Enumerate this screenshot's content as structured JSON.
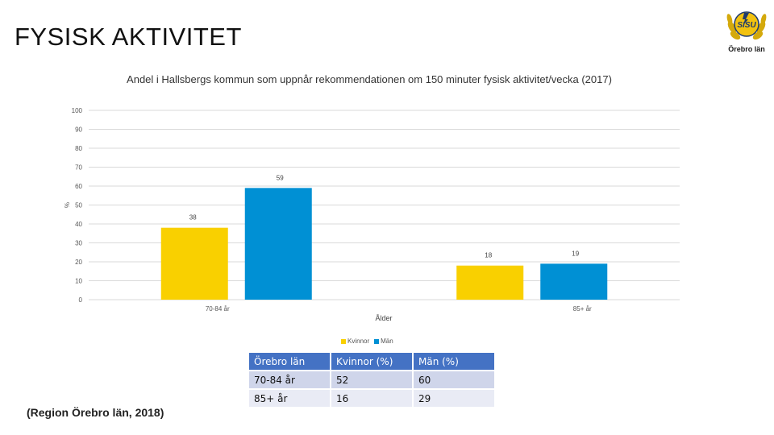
{
  "slide": {
    "title": "FYSISK AKTIVITET",
    "source": "(Region Örebro län, 2018)"
  },
  "logo": {
    "icon": "sisu-laurel-logo-icon",
    "caption": "Örebro län",
    "colors": {
      "gold": "#f2c20f",
      "navy": "#1f3a6e"
    }
  },
  "chart_data": {
    "type": "bar",
    "title": "Andel i Hallsbergs kommun som uppnår rekommendationen om 150 minuter fysisk aktivitet/vecka (2017)",
    "xlabel": "Ålder",
    "ylabel": "%",
    "ylim": [
      0,
      100
    ],
    "yticks": [
      0,
      10,
      20,
      30,
      40,
      50,
      60,
      70,
      80,
      90,
      100
    ],
    "categories": [
      "70-84 år",
      "85+ år"
    ],
    "series": [
      {
        "name": "Kvinnor",
        "color": "#f9d000",
        "values": [
          38,
          18
        ]
      },
      {
        "name": "Män",
        "color": "#0090d4",
        "values": [
          59,
          19
        ]
      }
    ],
    "grid": true,
    "legend_position": "bottom"
  },
  "table": {
    "headers": [
      "Örebro län",
      "Kvinnor (%)",
      "Män (%)"
    ],
    "rows": [
      [
        "70-84 år",
        "52",
        "60"
      ],
      [
        "85+ år",
        "16",
        "29"
      ]
    ]
  }
}
